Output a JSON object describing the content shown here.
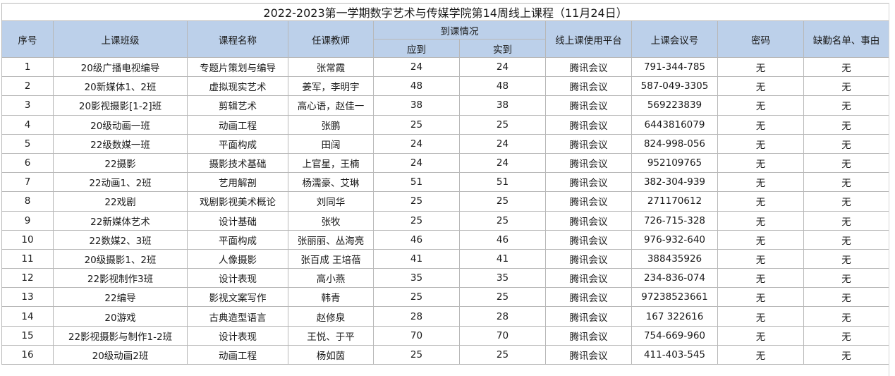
{
  "title": "2022-2023第一学期数字艺术与传媒学院第14周线上课程（11月24日）",
  "headers": {
    "index": "序号",
    "class": "上课班级",
    "course": "课程名称",
    "teacher": "任课教师",
    "attendance": "到课情况",
    "expected": "应到",
    "actual": "实到",
    "platform": "线上课使用平台",
    "meeting_id": "上课会议号",
    "password": "密码",
    "absent": "缺勤名单、事由"
  },
  "rows": [
    {
      "index": "1",
      "class": "20级广播电视编导",
      "course": "专题片策划与编导",
      "teacher": "张常霞",
      "expected": "24",
      "actual": "24",
      "platform": "腾讯会议",
      "meeting_id": "791-344-785",
      "password": "无",
      "absent": "无"
    },
    {
      "index": "2",
      "class": "20新媒体1、2班",
      "course": "虚拟现实艺术",
      "teacher": "姜军，李明宇",
      "expected": "48",
      "actual": "48",
      "platform": "腾讯会议",
      "meeting_id": "587-049-3305",
      "password": "无",
      "absent": "无"
    },
    {
      "index": "3",
      "class": "20影视摄影[1-2]班",
      "course": "剪辑艺术",
      "teacher": "高心语，赵佳一",
      "expected": "38",
      "actual": "38",
      "platform": "腾讯会议",
      "meeting_id": "569223839",
      "password": "无",
      "absent": "无"
    },
    {
      "index": "4",
      "class": "20级动画一班",
      "course": "动画工程",
      "teacher": "张鹏",
      "expected": "25",
      "actual": "25",
      "platform": "腾讯会议",
      "meeting_id": "6443816079",
      "password": "无",
      "absent": "无"
    },
    {
      "index": "5",
      "class": "22级数媒一班",
      "course": "平面构成",
      "teacher": "田阔",
      "expected": "24",
      "actual": "24",
      "platform": "腾讯会议",
      "meeting_id": "824-998-056",
      "password": "无",
      "absent": "无"
    },
    {
      "index": "6",
      "class": "22摄影",
      "course": "摄影技术基础",
      "teacher": "上官星，王楠",
      "expected": "24",
      "actual": "24",
      "platform": "腾讯会议",
      "meeting_id": "952109765",
      "password": "无",
      "absent": "无"
    },
    {
      "index": "7",
      "class": "22动画1、2班",
      "course": "艺用解剖",
      "teacher": "杨濡豪、艾琳",
      "expected": "51",
      "actual": "51",
      "platform": "腾讯会议",
      "meeting_id": "382-304-939",
      "password": "无",
      "absent": "无"
    },
    {
      "index": "8",
      "class": "22戏剧",
      "course": "戏剧影视美术概论",
      "teacher": "刘同华",
      "expected": "25",
      "actual": "25",
      "platform": "腾讯会议",
      "meeting_id": "271170612",
      "password": "无",
      "absent": "无"
    },
    {
      "index": "9",
      "class": "22新媒体艺术",
      "course": "设计基础",
      "teacher": "张牧",
      "expected": "25",
      "actual": "25",
      "platform": "腾讯会议",
      "meeting_id": "726-715-328",
      "password": "无",
      "absent": "无"
    },
    {
      "index": "10",
      "class": "22数媒2、3班",
      "course": "平面构成",
      "teacher": "张丽丽、丛海亮",
      "expected": "46",
      "actual": "46",
      "platform": "腾讯会议",
      "meeting_id": "976-932-640",
      "password": "无",
      "absent": "无"
    },
    {
      "index": "11",
      "class": "20级摄影1、2班",
      "course": "人像摄影",
      "teacher": "张百成 王培蓓",
      "expected": "41",
      "actual": "41",
      "platform": "腾讯会议",
      "meeting_id": "388435926",
      "password": "无",
      "absent": "无"
    },
    {
      "index": "12",
      "class": "22影视制作3班",
      "course": "设计表现",
      "teacher": "高小燕",
      "expected": "35",
      "actual": "35",
      "platform": "腾讯会议",
      "meeting_id": "234-836-074",
      "password": "无",
      "absent": "无"
    },
    {
      "index": "13",
      "class": "22编导",
      "course": "影视文案写作",
      "teacher": "韩青",
      "expected": "25",
      "actual": "25",
      "platform": "腾讯会议",
      "meeting_id": "97238523661",
      "password": "无",
      "absent": "无"
    },
    {
      "index": "14",
      "class": "20游戏",
      "course": "古典造型语言",
      "teacher": "赵修泉",
      "expected": "28",
      "actual": "28",
      "platform": "腾讯会议",
      "meeting_id": "167 322616",
      "password": "无",
      "absent": "无"
    },
    {
      "index": "15",
      "class": "22影视摄影与制作1-2班",
      "course": "设计表现",
      "teacher": "王悦、于平",
      "expected": "70",
      "actual": "70",
      "platform": "腾讯会议",
      "meeting_id": "754-669-960",
      "password": "无",
      "absent": "无"
    },
    {
      "index": "16",
      "class": "20级动画2班",
      "course": "动画工程",
      "teacher": "杨如茵",
      "expected": "25",
      "actual": "25",
      "platform": "腾讯会议",
      "meeting_id": "411-403-545",
      "password": "无",
      "absent": "无"
    }
  ],
  "colors": {
    "header_fill": "#bcd0ea",
    "grid_line": "#b8b8b8"
  }
}
